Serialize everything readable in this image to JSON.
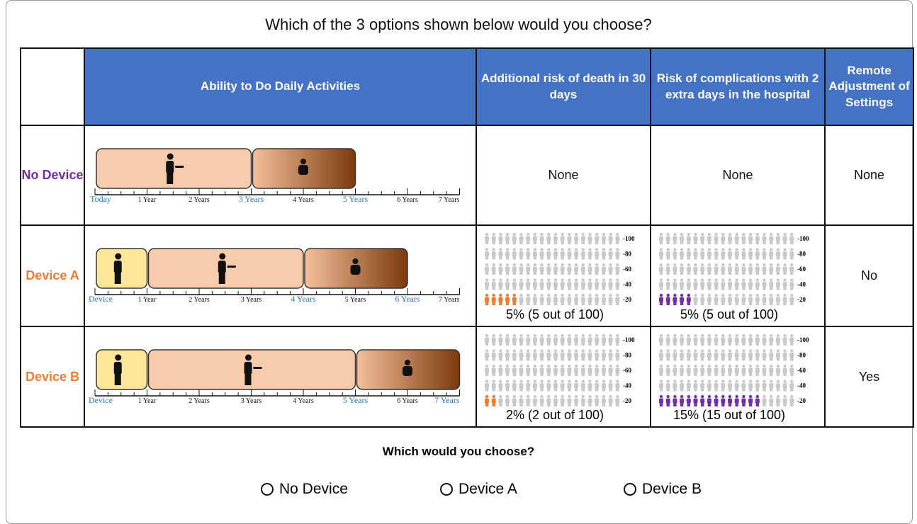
{
  "title": "Which of the 3 options shown below would you choose?",
  "table": {
    "headers": [
      "Ability to Do Daily Activities",
      "Additional risk of death in 30 days",
      "Risk of complications with 2 extra days in the hospital",
      "Remote Adjustment of Settings"
    ],
    "rows": [
      {
        "label": "No Device",
        "label_color": "#7030a0",
        "timeline": {
          "labels": [
            {
              "text": "Today",
              "year": 0,
              "highlight": true
            },
            {
              "text": "1 Year",
              "year": 1
            },
            {
              "text": "2 Years",
              "year": 2
            },
            {
              "text": "3 Years",
              "year": 3,
              "highlight": true
            },
            {
              "text": "4 Years",
              "year": 4
            },
            {
              "text": "5 Years",
              "year": 5,
              "highlight": true
            },
            {
              "text": "6 Years",
              "year": 6
            },
            {
              "text": "7 Years",
              "year": 7
            }
          ],
          "segments": [
            {
              "kind": "active",
              "start": 0,
              "end": 3
            },
            {
              "kind": "decline",
              "start": 3,
              "end": 5
            }
          ]
        },
        "death": "None",
        "complications": "None",
        "remote": "None"
      },
      {
        "label": "Device A",
        "label_color": "#ed7d31",
        "timeline": {
          "labels": [
            {
              "text": "Device",
              "year": 0,
              "highlight": true
            },
            {
              "text": "1 Year",
              "year": 1
            },
            {
              "text": "2 Years",
              "year": 2
            },
            {
              "text": "3 Years",
              "year": 3
            },
            {
              "text": "4 Years",
              "year": 4,
              "highlight": true
            },
            {
              "text": "5 Years",
              "year": 5
            },
            {
              "text": "6 Years",
              "year": 6,
              "highlight": true
            },
            {
              "text": "7 Years",
              "year": 7
            }
          ],
          "segments": [
            {
              "kind": "device",
              "start": 0,
              "end": 1
            },
            {
              "kind": "active",
              "start": 1,
              "end": 4
            },
            {
              "kind": "decline",
              "start": 4,
              "end": 6
            }
          ]
        },
        "death": {
          "total": 100,
          "affected": 5,
          "color": "#ed7d31",
          "axis_labels": [
            "-100",
            "-80",
            "-60",
            "-40",
            "-20"
          ],
          "caption": "5% (5 out of 100)"
        },
        "complications": {
          "total": 100,
          "affected": 5,
          "color": "#7030a0",
          "axis_labels": [
            "-100",
            "-80",
            "-60",
            "-40",
            "-20"
          ],
          "caption": "5% (5 out of 100)"
        },
        "remote": "No"
      },
      {
        "label": "Device B",
        "label_color": "#ed7d31",
        "timeline": {
          "labels": [
            {
              "text": "Device",
              "year": 0,
              "highlight": true
            },
            {
              "text": "1 Year",
              "year": 1
            },
            {
              "text": "2 Years",
              "year": 2
            },
            {
              "text": "3 Years",
              "year": 3
            },
            {
              "text": "4 Years",
              "year": 4
            },
            {
              "text": "5 Years",
              "year": 5,
              "highlight": true
            },
            {
              "text": "6 Years",
              "year": 6
            },
            {
              "text": "7 Years",
              "year": 7,
              "highlight": true
            }
          ],
          "segments": [
            {
              "kind": "device",
              "start": 0,
              "end": 1
            },
            {
              "kind": "active",
              "start": 1,
              "end": 5
            },
            {
              "kind": "decline",
              "start": 5,
              "end": 7
            }
          ]
        },
        "death": {
          "total": 100,
          "affected": 2,
          "color": "#ed7d31",
          "axis_labels": [
            "-100",
            "-80",
            "-60",
            "-40",
            "-20"
          ],
          "caption": "2% (2 out of 100)"
        },
        "complications": {
          "total": 100,
          "affected": 15,
          "color": "#7030a0",
          "axis_labels": [
            "-100",
            "-80",
            "-60",
            "-40",
            "-20"
          ],
          "caption": "15% (15 out of 100)"
        },
        "remote": "Yes"
      }
    ]
  },
  "question": "Which would you choose?",
  "options": [
    "No Device",
    "Device A",
    "Device B"
  ]
}
